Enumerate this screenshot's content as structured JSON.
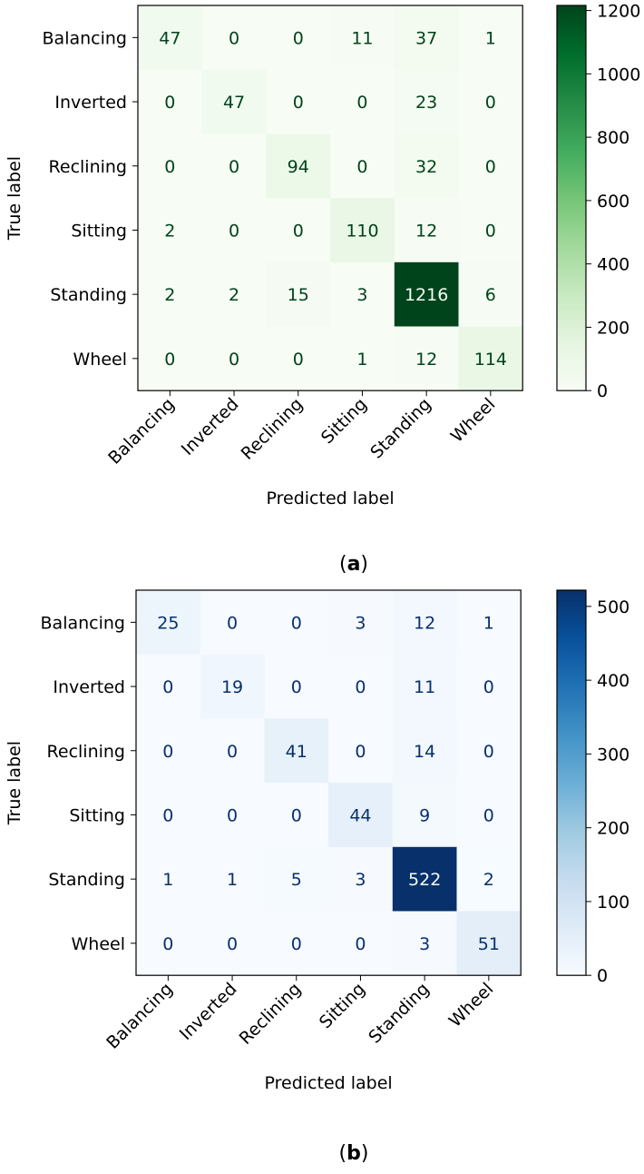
{
  "chart_data": [
    {
      "type": "heatmap",
      "panel_label": "a",
      "colormap": "Greens",
      "color_low": "#f7fcf5",
      "color_high": "#00441b",
      "text_color_light": "#f7fcf5",
      "text_color_dark": "#00441b",
      "xlabel": "Predicted label",
      "ylabel": "True label",
      "x_categories": [
        "Balancing",
        "Inverted",
        "Reclining",
        "Sitting",
        "Standing",
        "Wheel"
      ],
      "y_categories": [
        "Balancing",
        "Inverted",
        "Reclining",
        "Sitting",
        "Standing",
        "Wheel"
      ],
      "values": [
        [
          47,
          0,
          0,
          11,
          37,
          1
        ],
        [
          0,
          47,
          0,
          0,
          23,
          0
        ],
        [
          0,
          0,
          94,
          0,
          32,
          0
        ],
        [
          2,
          0,
          0,
          110,
          12,
          0
        ],
        [
          2,
          2,
          15,
          3,
          1216,
          6
        ],
        [
          0,
          0,
          0,
          1,
          12,
          114
        ]
      ],
      "colorbar_range": [
        0,
        1216
      ],
      "colorbar_ticks": [
        0,
        200,
        400,
        600,
        800,
        1000,
        1200
      ]
    },
    {
      "type": "heatmap",
      "panel_label": "b",
      "colormap": "Blues",
      "color_low": "#f7fbff",
      "color_high": "#08306b",
      "text_color_light": "#f7fbff",
      "text_color_dark": "#08306b",
      "xlabel": "Predicted label",
      "ylabel": "True label",
      "x_categories": [
        "Balancing",
        "Inverted",
        "Reclining",
        "Sitting",
        "Standing",
        "Wheel"
      ],
      "y_categories": [
        "Balancing",
        "Inverted",
        "Reclining",
        "Sitting",
        "Standing",
        "Wheel"
      ],
      "values": [
        [
          25,
          0,
          0,
          3,
          12,
          1
        ],
        [
          0,
          19,
          0,
          0,
          11,
          0
        ],
        [
          0,
          0,
          41,
          0,
          14,
          0
        ],
        [
          0,
          0,
          0,
          44,
          9,
          0
        ],
        [
          1,
          1,
          5,
          3,
          522,
          2
        ],
        [
          0,
          0,
          0,
          0,
          3,
          51
        ]
      ],
      "colorbar_range": [
        0,
        522
      ],
      "colorbar_ticks": [
        0,
        100,
        200,
        300,
        400,
        500
      ]
    }
  ]
}
